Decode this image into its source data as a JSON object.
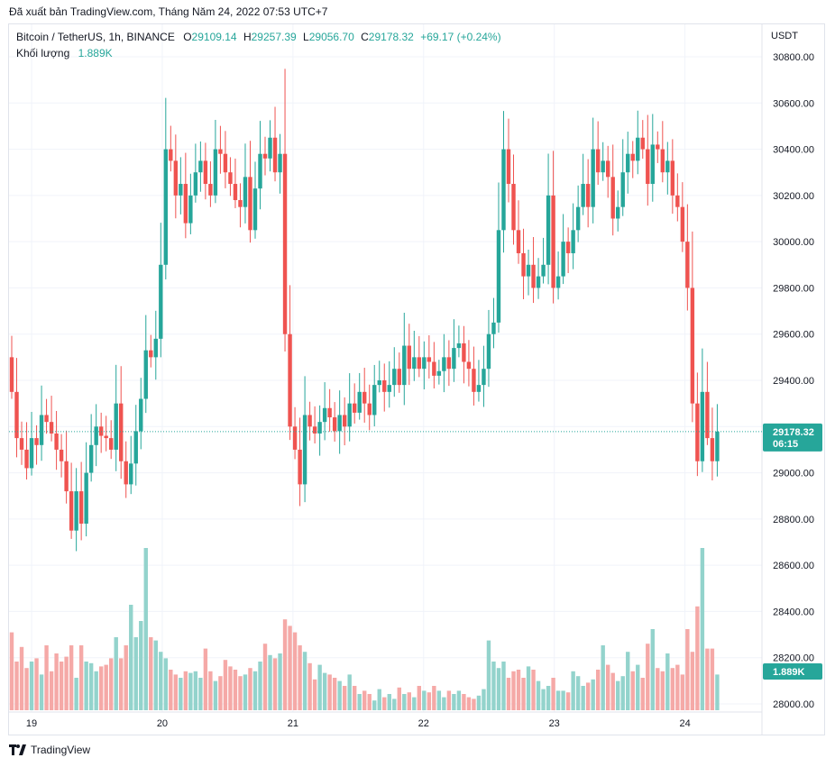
{
  "published": "Đã xuất bản TradingView.com, Tháng Năm 24, 2022 07:53 UTC+7",
  "legend": {
    "symbol": "Bitcoin / TetherUS, 1h, BINANCE",
    "o_label": "O",
    "o_value": "29109.14",
    "h_label": "H",
    "h_value": "29257.39",
    "l_label": "L",
    "l_value": "29056.70",
    "c_label": "C",
    "c_value": "29178.32",
    "change": "+69.17 (+0.24%)",
    "volume_label": "Khối lượng",
    "volume_value": "1.889K"
  },
  "currency": "USDT",
  "last_price_label": "29178.32",
  "countdown": "06:15",
  "volume_badge": "1.889K",
  "brand": "TradingView",
  "colors": {
    "up": "#26a69a",
    "down": "#ef5350",
    "up_vol": "#93d3cc",
    "down_vol": "#f5a9a7",
    "grid": "#f0f3fa"
  },
  "chart_data": {
    "type": "candlestick",
    "ylim": [
      28000,
      30800
    ],
    "y_ticks": [
      "30800.00",
      "30600.00",
      "30400.00",
      "30200.00",
      "30000.00",
      "29800.00",
      "29600.00",
      "29400.00",
      "29200.00",
      "29000.00",
      "28800.00",
      "28600.00",
      "28400.00",
      "28200.00",
      "28000.00"
    ],
    "x_ticks": [
      "19",
      "20",
      "21",
      "22",
      "23",
      "24"
    ],
    "last_price": 29178.32,
    "series": [
      {
        "name": "Bitcoin / TetherUS",
        "close": [
          29350,
          29150,
          29100,
          29020,
          29150,
          29120,
          29250,
          29220,
          29170,
          29100,
          29050,
          28920,
          28750,
          28920,
          28780,
          29000,
          29120,
          29200,
          29160,
          29150,
          29100,
          29300,
          29050,
          28950,
          29040,
          29180,
          29320,
          29530,
          29500,
          29580,
          29900,
          30400,
          30350,
          30200,
          30250,
          30080,
          30200,
          30300,
          30350,
          30250,
          30200,
          30400,
          30380,
          30300,
          30250,
          30180,
          30150,
          30280,
          30050,
          30230,
          30380,
          30360,
          30450,
          30300,
          30380,
          29600,
          29200,
          29100,
          28950,
          29250,
          29200,
          29170,
          29220,
          29280,
          29240,
          29180,
          29250,
          29200,
          29300,
          29260,
          29350,
          29300,
          29250,
          29380,
          29400,
          29350,
          29380,
          29450,
          29380,
          29550,
          29450,
          29500,
          29450,
          29500,
          29480,
          29420,
          29440,
          29500,
          29450,
          29540,
          29560,
          29480,
          29450,
          29350,
          29380,
          29450,
          29600,
          29650,
          30050,
          30400,
          30250,
          30050,
          29950,
          29850,
          29900,
          29800,
          29850,
          29900,
          30200,
          29800,
          29850,
          30000,
          29950,
          30050,
          30150,
          30250,
          30150,
          30400,
          30300,
          30350,
          30280,
          30100,
          30150,
          30300,
          30380,
          30350,
          30450,
          30400,
          30250,
          30420,
          30400,
          30300,
          30350,
          30200,
          30150,
          30000,
          29800,
          29300,
          29050,
          29350,
          29150,
          29050,
          29178.32
        ],
        "volume": [
          0.48,
          0.3,
          0.39,
          0.26,
          0.3,
          0.32,
          0.22,
          0.4,
          0.24,
          0.35,
          0.3,
          0.33,
          0.4,
          0.2,
          0.4,
          0.3,
          0.29,
          0.24,
          0.27,
          0.28,
          0.32,
          0.45,
          0.32,
          0.4,
          0.65,
          0.45,
          0.55,
          1.0,
          0.45,
          0.43,
          0.36,
          0.32,
          0.25,
          0.22,
          0.2,
          0.24,
          0.23,
          0.24,
          0.2,
          0.38,
          0.24,
          0.18,
          0.21,
          0.31,
          0.27,
          0.25,
          0.21,
          0.22,
          0.26,
          0.24,
          0.3,
          0.41,
          0.34,
          0.32,
          0.35,
          0.56,
          0.52,
          0.48,
          0.4,
          0.36,
          0.29,
          0.19,
          0.28,
          0.23,
          0.22,
          0.2,
          0.18,
          0.15,
          0.22,
          0.15,
          0.1,
          0.12,
          0.1,
          0.06,
          0.13,
          0.08,
          0.1,
          0.07,
          0.14,
          0.1,
          0.11,
          0.08,
          0.15,
          0.12,
          0.11,
          0.15,
          0.12,
          0.08,
          0.12,
          0.1,
          0.12,
          0.1,
          0.08,
          0.07,
          0.09,
          0.13,
          0.43,
          0.3,
          0.26,
          0.3,
          0.2,
          0.24,
          0.25,
          0.2,
          0.27,
          0.25,
          0.18,
          0.13,
          0.15,
          0.2,
          0.12,
          0.12,
          0.11,
          0.24,
          0.21,
          0.15,
          0.17,
          0.19,
          0.25,
          0.4,
          0.28,
          0.23,
          0.18,
          0.21,
          0.36,
          0.24,
          0.28,
          0.2,
          0.41,
          0.5,
          0.26,
          0.24,
          0.35,
          0.26,
          0.28,
          0.22,
          0.5,
          0.36,
          0.64,
          1.0,
          0.38,
          0.38,
          0.22
        ]
      }
    ]
  }
}
